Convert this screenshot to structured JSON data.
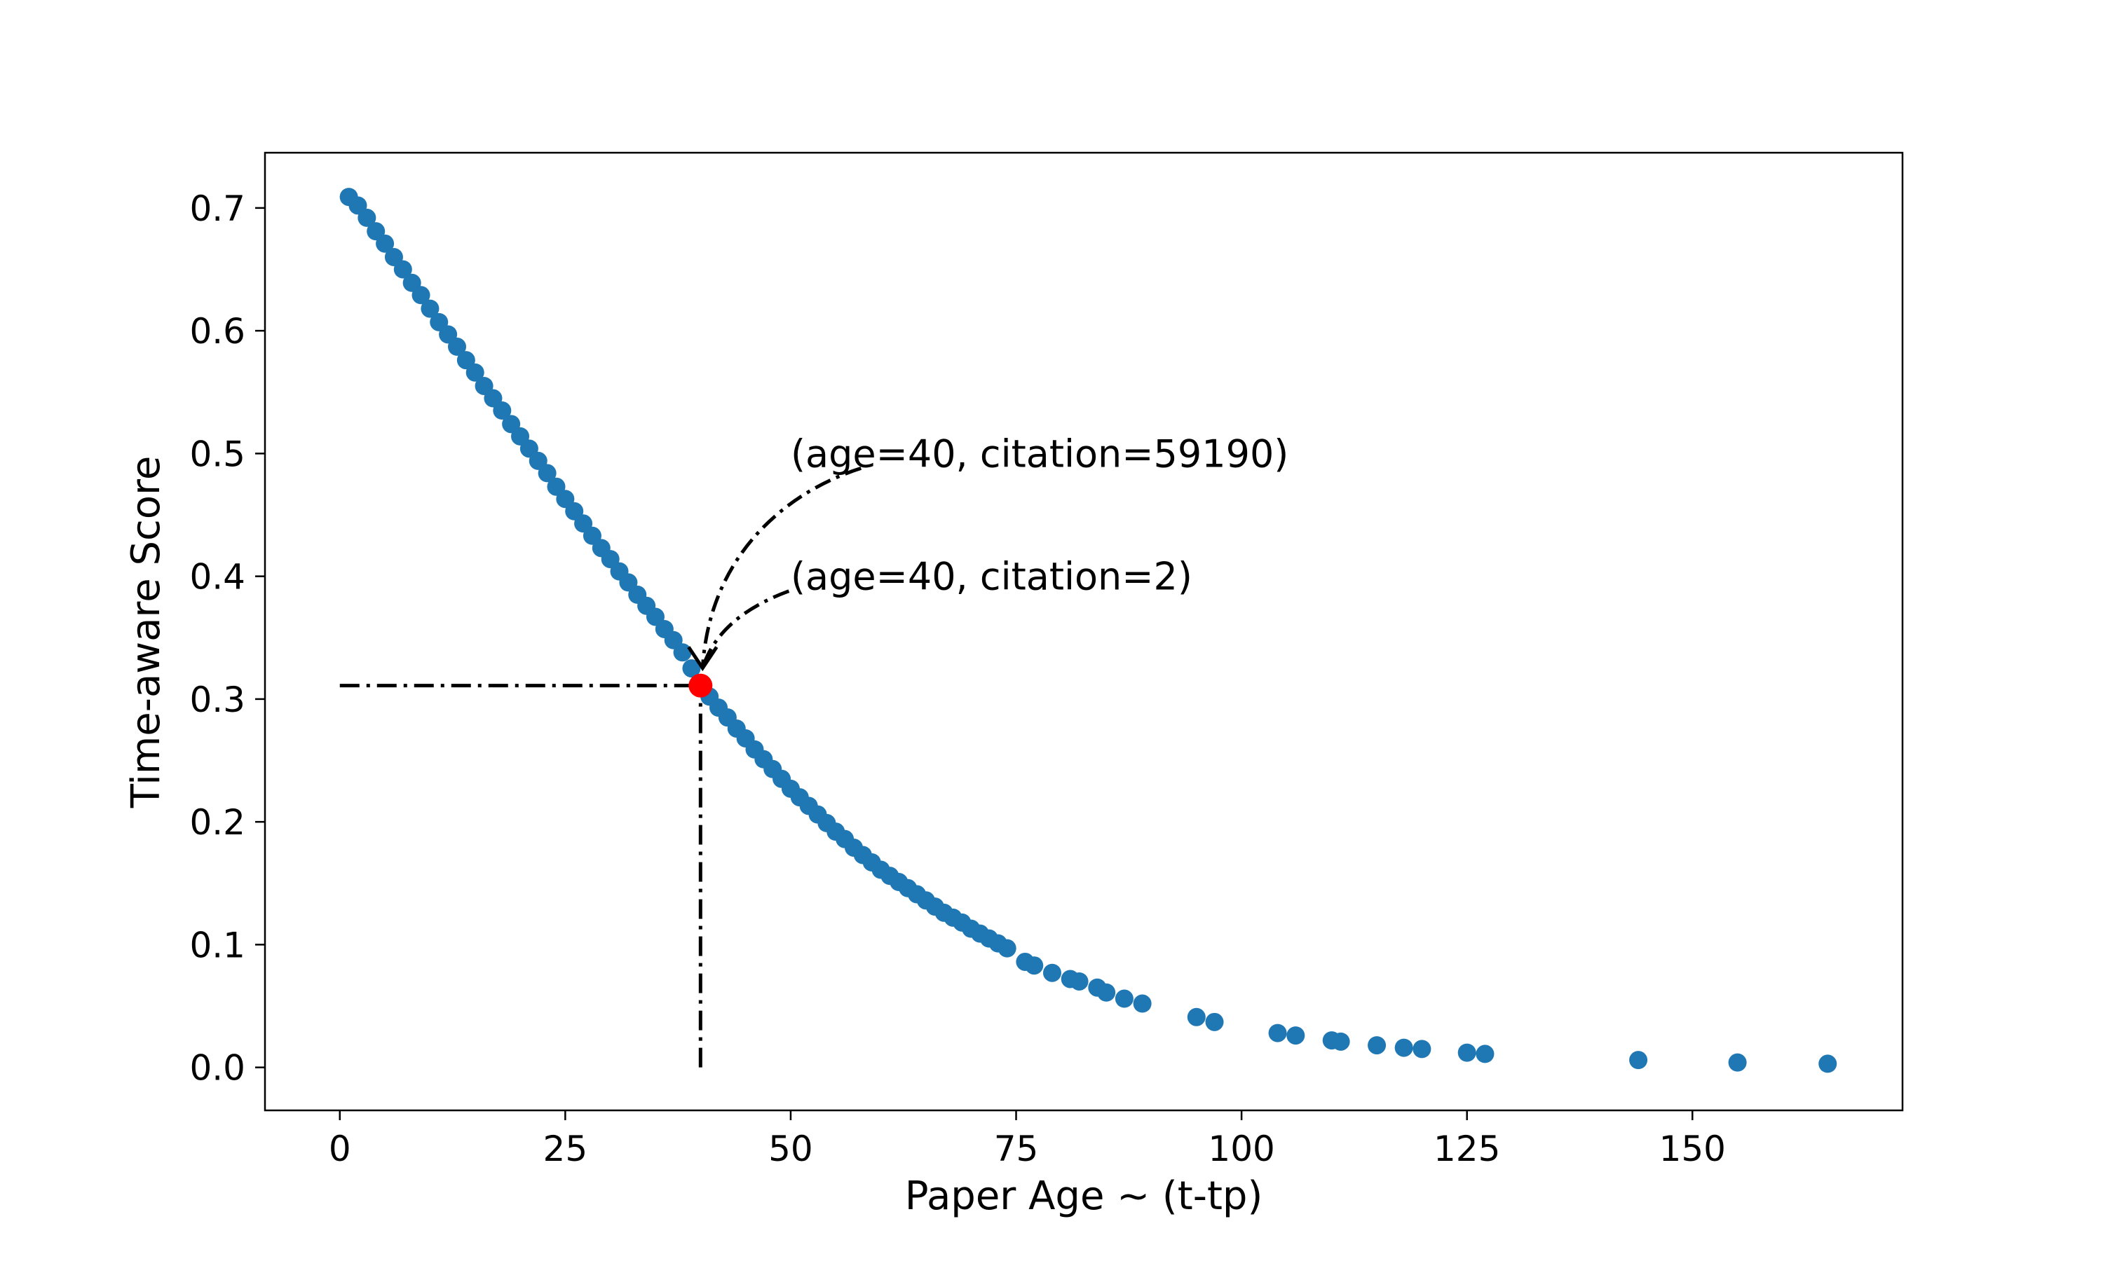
{
  "chart_data": {
    "type": "scatter",
    "title": "",
    "xlabel": "Paper Age ~ (t-tp)",
    "ylabel": "Time-aware Score",
    "xlim": [
      -8.3,
      173.3
    ],
    "ylim": [
      -0.035,
      0.745
    ],
    "grid": false,
    "x_ticks": [
      0,
      25,
      50,
      75,
      100,
      125,
      150
    ],
    "x_tick_labels": [
      "0",
      "25",
      "50",
      "75",
      "100",
      "125",
      "150"
    ],
    "y_ticks": [
      0.0,
      0.1,
      0.2,
      0.3,
      0.4,
      0.5,
      0.6,
      0.7
    ],
    "y_tick_labels": [
      "0.0",
      "0.1",
      "0.2",
      "0.3",
      "0.4",
      "0.5",
      "0.6",
      "0.7"
    ],
    "series": [
      {
        "color": "#1f77b4",
        "x": [
          1,
          2,
          3,
          4,
          5,
          6,
          7,
          8,
          9,
          10,
          11,
          12,
          13,
          14,
          15,
          16,
          17,
          18,
          19,
          20,
          21,
          22,
          23,
          24,
          25,
          26,
          27,
          28,
          29,
          30,
          31,
          32,
          33,
          34,
          35,
          36,
          37,
          38,
          39,
          41,
          42,
          43,
          44,
          45,
          46,
          47,
          48,
          49,
          50,
          51,
          52,
          53,
          54,
          55,
          56,
          57,
          58,
          59,
          60,
          61,
          62,
          63,
          64,
          65,
          66,
          67,
          68,
          69,
          70,
          71,
          72,
          73,
          74,
          76,
          77,
          79,
          81,
          82,
          84,
          85,
          87,
          89,
          95,
          97,
          104,
          106,
          110,
          111,
          115,
          118,
          120,
          125,
          127,
          144,
          155,
          165
        ],
        "y": [
          0.709,
          0.702,
          0.692,
          0.681,
          0.671,
          0.66,
          0.65,
          0.639,
          0.629,
          0.618,
          0.607,
          0.597,
          0.587,
          0.576,
          0.566,
          0.555,
          0.545,
          0.535,
          0.524,
          0.514,
          0.504,
          0.494,
          0.484,
          0.473,
          0.463,
          0.453,
          0.443,
          0.433,
          0.423,
          0.414,
          0.404,
          0.395,
          0.385,
          0.376,
          0.367,
          0.357,
          0.348,
          0.338,
          0.325,
          0.302,
          0.293,
          0.285,
          0.276,
          0.268,
          0.259,
          0.251,
          0.243,
          0.235,
          0.227,
          0.22,
          0.213,
          0.206,
          0.199,
          0.192,
          0.186,
          0.179,
          0.173,
          0.167,
          0.161,
          0.156,
          0.151,
          0.146,
          0.141,
          0.136,
          0.131,
          0.126,
          0.122,
          0.118,
          0.113,
          0.109,
          0.105,
          0.101,
          0.097,
          0.086,
          0.083,
          0.077,
          0.072,
          0.07,
          0.065,
          0.061,
          0.056,
          0.052,
          0.041,
          0.037,
          0.028,
          0.026,
          0.022,
          0.021,
          0.018,
          0.016,
          0.015,
          0.012,
          0.011,
          0.006,
          0.004,
          0.003
        ]
      }
    ],
    "highlight": {
      "x": 40,
      "y": 0.311,
      "color": "#ff0000"
    },
    "reference_lines": {
      "horizontal": {
        "y": 0.311,
        "x_from": 0,
        "x_to": 40
      },
      "vertical": {
        "x": 40,
        "y_from": 0.0,
        "y_to": 0.311
      }
    },
    "annotations": [
      {
        "text": "(age=40, citation=59190)",
        "x": 50,
        "y": 0.5
      },
      {
        "text": "(age=40, citation=2)",
        "x": 50,
        "y": 0.4
      }
    ]
  }
}
